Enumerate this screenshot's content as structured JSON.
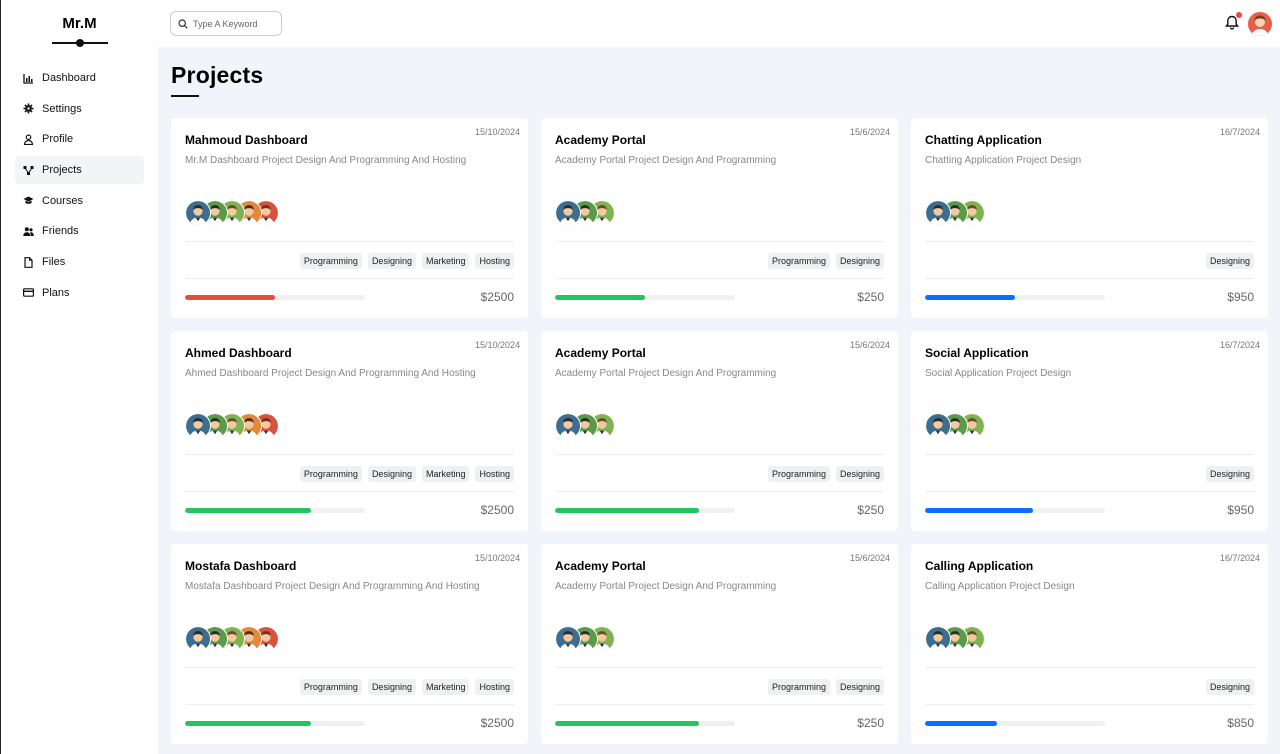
{
  "sidebar": {
    "logo": "Mr.M",
    "items": [
      {
        "label": "Dashboard",
        "icon": "chart-icon",
        "active": false
      },
      {
        "label": "Settings",
        "icon": "gear-icon",
        "active": false
      },
      {
        "label": "Profile",
        "icon": "user-icon",
        "active": false
      },
      {
        "label": "Projects",
        "icon": "diagram-icon",
        "active": true
      },
      {
        "label": "Courses",
        "icon": "graduation-cap-icon",
        "active": false
      },
      {
        "label": "Friends",
        "icon": "users-icon",
        "active": false
      },
      {
        "label": "Files",
        "icon": "file-icon",
        "active": false
      },
      {
        "label": "Plans",
        "icon": "credit-card-icon",
        "active": false
      }
    ]
  },
  "topbar": {
    "search_placeholder": "Type A Keyword",
    "notification_dot_color": "#ef4444"
  },
  "main": {
    "title": "Projects",
    "cards": [
      {
        "title": "Mahmoud Dashboard",
        "date": "15/10/2024",
        "description": "Mr.M Dashboard Project Design And Programming And Hosting",
        "avatars": 5,
        "tags": [
          "Programming",
          "Designing",
          "Marketing",
          "Hosting"
        ],
        "progress": 0.5,
        "progress_color": "#e74c3c",
        "price": "$2500"
      },
      {
        "title": "Academy Portal",
        "date": "15/6/2024",
        "description": "Academy Portal Project Design And Programming",
        "avatars": 3,
        "tags": [
          "Programming",
          "Designing"
        ],
        "progress": 0.5,
        "progress_color": "#22c55e",
        "price": "$250"
      },
      {
        "title": "Chatting Application",
        "date": "16/7/2024",
        "description": "Chatting Application Project Design",
        "avatars": 3,
        "tags": [
          "Designing"
        ],
        "progress": 0.5,
        "progress_color": "#0d6efd",
        "price": "$950"
      },
      {
        "title": "Ahmed Dashboard",
        "date": "15/10/2024",
        "description": "Ahmed Dashboard Project Design And Programming And Hosting",
        "avatars": 5,
        "tags": [
          "Programming",
          "Designing",
          "Marketing",
          "Hosting"
        ],
        "progress": 0.7,
        "progress_color": "#22c55e",
        "price": "$2500"
      },
      {
        "title": "Academy Portal",
        "date": "15/6/2024",
        "description": "Academy Portal Project Design And Programming",
        "avatars": 3,
        "tags": [
          "Programming",
          "Designing"
        ],
        "progress": 0.8,
        "progress_color": "#22c55e",
        "price": "$250"
      },
      {
        "title": "Social Application",
        "date": "16/7/2024",
        "description": "Social Application Project Design",
        "avatars": 3,
        "tags": [
          "Designing"
        ],
        "progress": 0.6,
        "progress_color": "#0d6efd",
        "price": "$950"
      },
      {
        "title": "Mostafa Dashboard",
        "date": "15/10/2024",
        "description": "Mostafa Dashboard Project Design And Programming And Hosting",
        "avatars": 5,
        "tags": [
          "Programming",
          "Designing",
          "Marketing",
          "Hosting"
        ],
        "progress": 0.7,
        "progress_color": "#22c55e",
        "price": "$2500"
      },
      {
        "title": "Academy Portal",
        "date": "15/6/2024",
        "description": "Academy Portal Project Design And Programming",
        "avatars": 3,
        "tags": [
          "Programming",
          "Designing"
        ],
        "progress": 0.8,
        "progress_color": "#22c55e",
        "price": "$250"
      },
      {
        "title": "Calling Application",
        "date": "16/7/2024",
        "description": "Calling Application Project Design",
        "avatars": 3,
        "tags": [
          "Designing"
        ],
        "progress": 0.4,
        "progress_color": "#0d6efd",
        "price": "$850"
      }
    ]
  }
}
